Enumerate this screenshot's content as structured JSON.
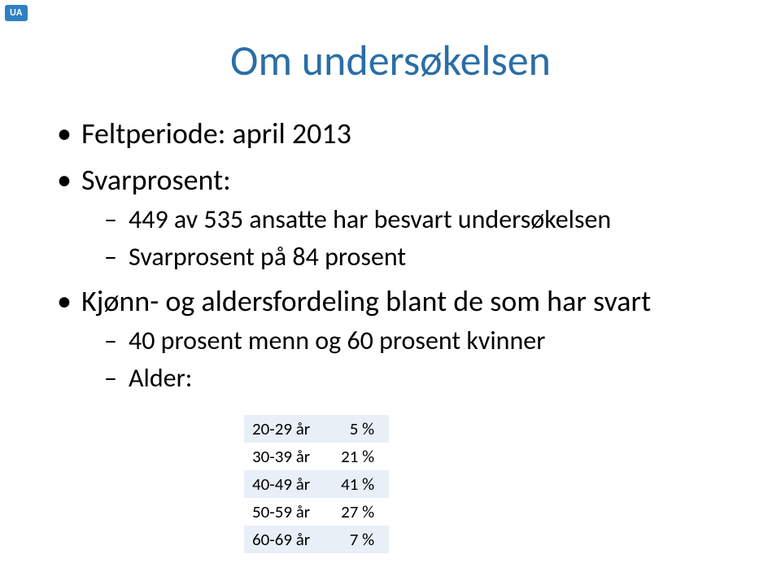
{
  "badge": "UA",
  "title": "Om undersøkelsen",
  "bullets": {
    "b1": "Feltperiode: april 2013",
    "b2": "Svarprosent:",
    "b2a": "449 av 535 ansatte har besvart undersøkelsen",
    "b2b": "Svarprosent på 84 prosent",
    "b3": "Kjønn- og aldersfordeling blant de som har svart",
    "b3a": "40 prosent menn og 60 prosent kvinner",
    "b3b": "Alder:"
  },
  "age_table": {
    "rows": [
      {
        "label": "20-29 år",
        "value": "5 %"
      },
      {
        "label": "30-39 år",
        "value": "21 %"
      },
      {
        "label": "40-49 år",
        "value": "41 %"
      },
      {
        "label": "50-59 år",
        "value": "27 %"
      },
      {
        "label": "60-69 år",
        "value": "7 %"
      }
    ],
    "band_color": "#e9eff7",
    "text_color": "#000000",
    "fontsize": 21
  },
  "colors": {
    "title": "#2a6ea7",
    "badge_bg": "#2f80c3",
    "badge_text": "#ffffff",
    "body_text": "#000000",
    "background": "#ffffff"
  },
  "typography": {
    "title_fontsize": 52,
    "lvl1_fontsize": 36,
    "lvl2_fontsize": 32,
    "font_family": "Calibri"
  }
}
